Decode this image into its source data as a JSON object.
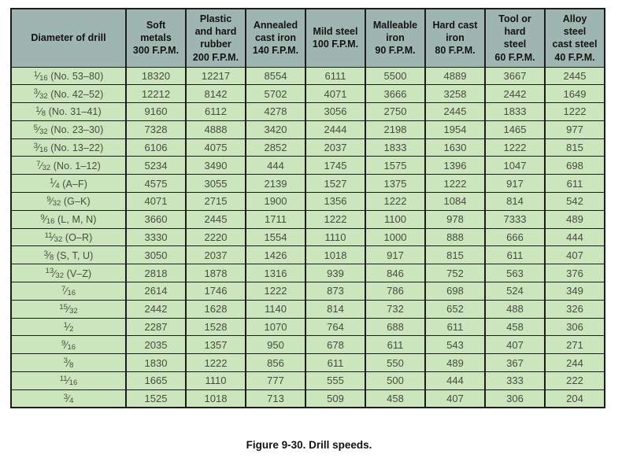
{
  "page": {
    "background": "#ffffff"
  },
  "caption": "Figure 9-30. Drill speeds.",
  "colors": {
    "header_bg": "#9fb5af",
    "row_bg": "#cbe6bd",
    "border": "#1c1c1c",
    "header_text": "#131313",
    "cell_text": "#4a4a43",
    "page_bg": "#ffffff"
  },
  "chart_data": {
    "type": "table",
    "title": "Figure 9-30. Drill speeds.",
    "columns": [
      "Diameter of drill",
      "Soft\nmetals\n300 F.P.M.",
      "Plastic\nand hard\nrubber\n200 F.P.M.",
      "Annealed\ncast iron\n140 F.P.M.",
      "Mild steel\n100 F.P.M.",
      "Malleable\niron\n90 F.P.M.",
      "Hard cast\niron\n80 F.P.M.",
      "Tool or\nhard\nsteel\n60 F.P.M.",
      "Alloy\nsteel\ncast steel\n40 F.P.M."
    ],
    "rows": [
      {
        "diameter": "1/16",
        "note": "(No. 53–80)",
        "values": [
          18320,
          12217,
          8554,
          6111,
          5500,
          4889,
          3667,
          2445
        ]
      },
      {
        "diameter": "3/32",
        "note": "(No. 42–52)",
        "values": [
          12212,
          8142,
          5702,
          4071,
          3666,
          3258,
          2442,
          1649
        ]
      },
      {
        "diameter": "1/8",
        "note": "(No. 31–41)",
        "values": [
          9160,
          6112,
          4278,
          3056,
          2750,
          2445,
          1833,
          1222
        ]
      },
      {
        "diameter": "5/32",
        "note": "(No. 23–30)",
        "values": [
          7328,
          4888,
          3420,
          2444,
          2198,
          1954,
          1465,
          977
        ]
      },
      {
        "diameter": "3/16",
        "note": "(No. 13–22)",
        "values": [
          6106,
          4075,
          2852,
          2037,
          1833,
          1630,
          1222,
          815
        ]
      },
      {
        "diameter": "7/32",
        "note": "(No. 1–12)",
        "values": [
          5234,
          3490,
          444,
          1745,
          1575,
          1396,
          1047,
          698
        ]
      },
      {
        "diameter": "1/4",
        "note": "(A–F)",
        "values": [
          4575,
          3055,
          2139,
          1527,
          1375,
          1222,
          917,
          611
        ]
      },
      {
        "diameter": "9/32",
        "note": "(G–K)",
        "values": [
          4071,
          2715,
          1900,
          1356,
          1222,
          1084,
          814,
          542
        ]
      },
      {
        "diameter": "9/16",
        "note": "(L, M, N)",
        "values": [
          3660,
          2445,
          1711,
          1222,
          1100,
          978,
          7333,
          489
        ]
      },
      {
        "diameter": "11/32",
        "note": "(O–R)",
        "values": [
          3330,
          2220,
          1554,
          1110,
          1000,
          888,
          666,
          444
        ]
      },
      {
        "diameter": "3/8",
        "note": "(S, T, U)",
        "values": [
          3050,
          2037,
          1426,
          1018,
          917,
          815,
          611,
          407
        ]
      },
      {
        "diameter": "13/32",
        "note": "(V–Z)",
        "values": [
          2818,
          1878,
          1316,
          939,
          846,
          752,
          563,
          376
        ]
      },
      {
        "diameter": "7/16",
        "note": "",
        "values": [
          2614,
          1746,
          1222,
          873,
          786,
          698,
          524,
          349
        ]
      },
      {
        "diameter": "15/32",
        "note": "",
        "values": [
          2442,
          1628,
          1140,
          814,
          732,
          652,
          488,
          326
        ]
      },
      {
        "diameter": "1/2",
        "note": "",
        "values": [
          2287,
          1528,
          1070,
          764,
          688,
          611,
          458,
          306
        ]
      },
      {
        "diameter": "9/16",
        "note": "",
        "values": [
          2035,
          1357,
          950,
          678,
          611,
          543,
          407,
          271
        ]
      },
      {
        "diameter": "3/8",
        "note": "",
        "values": [
          1830,
          1222,
          856,
          611,
          550,
          489,
          367,
          244
        ]
      },
      {
        "diameter": "11/16",
        "note": "",
        "values": [
          1665,
          1110,
          777,
          555,
          500,
          444,
          333,
          222
        ]
      },
      {
        "diameter": "3/4",
        "note": "",
        "values": [
          1525,
          1018,
          713,
          509,
          458,
          407,
          306,
          204
        ]
      }
    ]
  }
}
